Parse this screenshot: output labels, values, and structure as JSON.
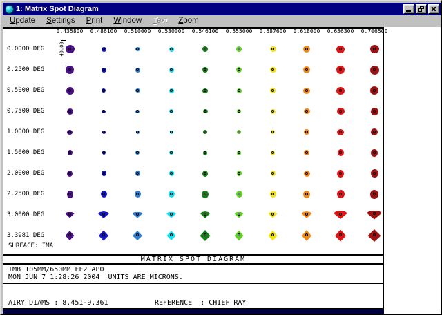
{
  "window": {
    "title": "1: Matrix Spot Diagram"
  },
  "menu": {
    "items": [
      {
        "label": "Update",
        "enabled": true
      },
      {
        "label": "Settings",
        "enabled": true
      },
      {
        "label": "Print",
        "enabled": true
      },
      {
        "label": "Window",
        "enabled": true
      },
      {
        "label": "Text",
        "enabled": false
      },
      {
        "label": "Zoom",
        "enabled": true
      }
    ]
  },
  "chart_data": {
    "type": "matrix-spot-diagram",
    "title": "MATRIX SPOT DIAGRAM",
    "columns_wavelength_microns": [
      "0.435800",
      "0.486100",
      "0.510000",
      "0.530000",
      "0.546100",
      "0.555000",
      "0.587600",
      "0.618000",
      "0.656300",
      "0.706500"
    ],
    "column_colors": [
      "#4a0e86",
      "#1414c8",
      "#2e7fd2",
      "#12dfee",
      "#157c15",
      "#5dd224",
      "#f2e30a",
      "#ec8a1e",
      "#df1414",
      "#9c1212"
    ],
    "rows_field_deg": [
      "0.0000 DEG",
      "0.2500 DEG",
      "0.5000 DEG",
      "0.7500 DEG",
      "1.0000 DEG",
      "1.5000 DEG",
      "2.0000 DEG",
      "2.2500 DEG",
      "3.0000 DEG",
      "3.3981 DEG"
    ],
    "surface_label": "SURFACE: IMA",
    "scale_bar_label": "40.00",
    "spot_rows": [
      {
        "shape": "dot",
        "sizes": [
          [
            13,
            12
          ],
          [
            7,
            7
          ],
          [
            7,
            6
          ],
          [
            7,
            7
          ],
          [
            8,
            8
          ],
          [
            8,
            8
          ],
          [
            9,
            8
          ],
          [
            10,
            10
          ],
          [
            12,
            11
          ],
          [
            13,
            12
          ]
        ]
      },
      {
        "shape": "dot",
        "sizes": [
          [
            12,
            12
          ],
          [
            7,
            7
          ],
          [
            7,
            7
          ],
          [
            7,
            7
          ],
          [
            8,
            8
          ],
          [
            8,
            8
          ],
          [
            9,
            8
          ],
          [
            10,
            10
          ],
          [
            12,
            12
          ],
          [
            13,
            13
          ]
        ]
      },
      {
        "shape": "dot",
        "sizes": [
          [
            11,
            11
          ],
          [
            6,
            6
          ],
          [
            7,
            6
          ],
          [
            7,
            7
          ],
          [
            8,
            7
          ],
          [
            7,
            7
          ],
          [
            8,
            8
          ],
          [
            10,
            9
          ],
          [
            12,
            11
          ],
          [
            12,
            12
          ]
        ]
      },
      {
        "shape": "dot",
        "sizes": [
          [
            9,
            9
          ],
          [
            6,
            5
          ],
          [
            6,
            5
          ],
          [
            6,
            6
          ],
          [
            7,
            6
          ],
          [
            6,
            6
          ],
          [
            7,
            7
          ],
          [
            9,
            8
          ],
          [
            11,
            10
          ],
          [
            11,
            11
          ]
        ]
      },
      {
        "shape": "dot",
        "sizes": [
          [
            8,
            7
          ],
          [
            5,
            5
          ],
          [
            5,
            5
          ],
          [
            5,
            5
          ],
          [
            6,
            6
          ],
          [
            6,
            6
          ],
          [
            6,
            6
          ],
          [
            8,
            8
          ],
          [
            10,
            9
          ],
          [
            10,
            10
          ]
        ]
      },
      {
        "shape": "dot",
        "sizes": [
          [
            7,
            8
          ],
          [
            5,
            6
          ],
          [
            6,
            6
          ],
          [
            6,
            6
          ],
          [
            6,
            7
          ],
          [
            6,
            7
          ],
          [
            6,
            7
          ],
          [
            8,
            8
          ],
          [
            9,
            10
          ],
          [
            10,
            11
          ]
        ]
      },
      {
        "shape": "dot",
        "sizes": [
          [
            8,
            9
          ],
          [
            7,
            8
          ],
          [
            7,
            8
          ],
          [
            7,
            8
          ],
          [
            8,
            9
          ],
          [
            7,
            8
          ],
          [
            7,
            8
          ],
          [
            9,
            9
          ],
          [
            10,
            11
          ],
          [
            11,
            12
          ]
        ]
      },
      {
        "shape": "dot",
        "sizes": [
          [
            9,
            11
          ],
          [
            9,
            10
          ],
          [
            9,
            10
          ],
          [
            9,
            10
          ],
          [
            10,
            11
          ],
          [
            9,
            10
          ],
          [
            9,
            10
          ],
          [
            10,
            11
          ],
          [
            11,
            12
          ],
          [
            12,
            13
          ]
        ]
      },
      {
        "shape": "fan",
        "sizes": [
          [
            13,
            9
          ],
          [
            16,
            10
          ],
          [
            15,
            9
          ],
          [
            14,
            9
          ],
          [
            14,
            10
          ],
          [
            13,
            9
          ],
          [
            13,
            9
          ],
          [
            15,
            10
          ],
          [
            20,
            12
          ],
          [
            22,
            13
          ]
        ]
      },
      {
        "shape": "diamond",
        "sizes": [
          [
            13,
            14
          ],
          [
            14,
            15
          ],
          [
            14,
            14
          ],
          [
            13,
            14
          ],
          [
            15,
            16
          ],
          [
            13,
            15
          ],
          [
            13,
            15
          ],
          [
            14,
            16
          ],
          [
            16,
            17
          ],
          [
            19,
            18
          ]
        ]
      }
    ]
  },
  "footer": {
    "band_title": "MATRIX SPOT DIAGRAM",
    "lens_title": "TMB 105MM/650MM FF2 APO",
    "date_units_line": "MON JUN 7 1:28:26 2004  UNITS ARE MICRONS.",
    "airy_line": "AIRY DIAMS : 8.451-9.361",
    "reference_line": "REFERENCE  : CHIEF RAY"
  }
}
